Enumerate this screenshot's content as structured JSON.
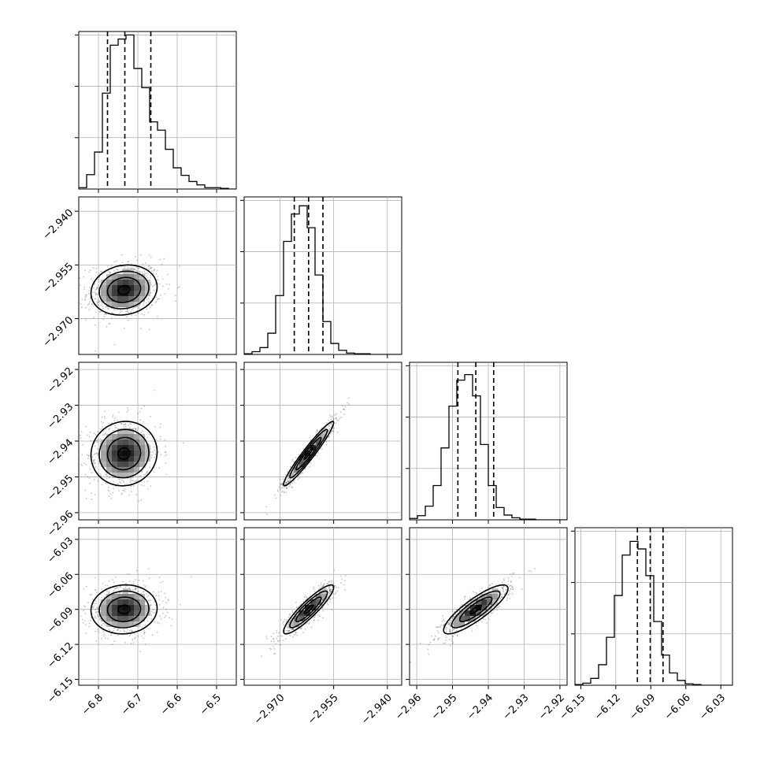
{
  "chart_data": {
    "type": "corner",
    "colors": {
      "line": "#000000",
      "grid": "#b0b0b0",
      "points": "#555555"
    },
    "parameters": [
      {
        "index": 0,
        "range": [
          -6.85,
          -6.45
        ],
        "ticks": [
          {
            "value": -6.8,
            "label": "−6.8"
          },
          {
            "value": -6.7,
            "label": "−6.7"
          },
          {
            "value": -6.6,
            "label": "−6.6"
          },
          {
            "value": -6.5,
            "label": "−6.5"
          }
        ],
        "mean": -6.735,
        "sd": 0.042,
        "quantiles": [
          -6.777,
          -6.733,
          -6.667
        ]
      },
      {
        "index": 1,
        "range": [
          -2.98,
          -2.936
        ],
        "ticks": [
          {
            "value": -2.97,
            "label": "−2.970"
          },
          {
            "value": -2.955,
            "label": "−2.955"
          },
          {
            "value": -2.94,
            "label": "−2.940"
          }
        ],
        "mean": -2.962,
        "sd": 0.0035,
        "quantiles": [
          -2.966,
          -2.962,
          -2.958
        ]
      },
      {
        "index": 2,
        "range": [
          -2.962,
          -2.918
        ],
        "ticks": [
          {
            "value": -2.96,
            "label": "−2.96"
          },
          {
            "value": -2.95,
            "label": "−2.95"
          },
          {
            "value": -2.94,
            "label": "−2.94"
          },
          {
            "value": -2.93,
            "label": "−2.93"
          },
          {
            "value": -2.92,
            "label": "−2.92"
          }
        ],
        "mean": -2.9435,
        "sd": 0.0045,
        "quantiles": [
          -2.9485,
          -2.9435,
          -2.9385
        ]
      },
      {
        "index": 3,
        "range": [
          -6.155,
          -6.02
        ],
        "ticks": [
          {
            "value": -6.15,
            "label": "−6.15"
          },
          {
            "value": -6.12,
            "label": "−6.12"
          },
          {
            "value": -6.09,
            "label": "−6.09"
          },
          {
            "value": -6.06,
            "label": "−6.06"
          },
          {
            "value": -6.03,
            "label": "−6.03"
          }
        ],
        "mean": -6.09,
        "sd": 0.0105,
        "quantiles": [
          -6.1015,
          -6.0905,
          -6.0795
        ]
      }
    ],
    "correlations": [
      {
        "i": 0,
        "j": 1,
        "r": 0.12
      },
      {
        "i": 0,
        "j": 2,
        "r": 0.05
      },
      {
        "i": 0,
        "j": 3,
        "r": 0.05
      },
      {
        "i": 1,
        "j": 2,
        "r": 0.96
      },
      {
        "i": 1,
        "j": 3,
        "r": 0.9
      },
      {
        "i": 2,
        "j": 3,
        "r": 0.85
      }
    ],
    "histograms": [
      [
        4,
        42,
        108,
        280,
        420,
        438,
        450,
        352,
        296,
        196,
        172,
        116,
        62,
        40,
        22,
        12,
        4,
        4,
        2,
        0
      ],
      [
        2,
        8,
        20,
        62,
        172,
        330,
        410,
        434,
        370,
        232,
        96,
        32,
        12,
        4,
        2,
        2,
        0,
        0,
        0,
        0
      ],
      [
        4,
        12,
        40,
        100,
        210,
        332,
        408,
        424,
        362,
        220,
        100,
        36,
        14,
        6,
        2,
        2,
        0,
        0,
        0,
        0
      ],
      [
        2,
        6,
        20,
        60,
        140,
        262,
        380,
        420,
        398,
        320,
        186,
        88,
        36,
        14,
        4,
        2,
        0,
        0,
        0,
        0
      ]
    ],
    "hist_max": [
      460,
      460,
      460,
      460
    ],
    "hist_y_ticks": [
      150,
      300,
      450
    ],
    "grid": true
  }
}
